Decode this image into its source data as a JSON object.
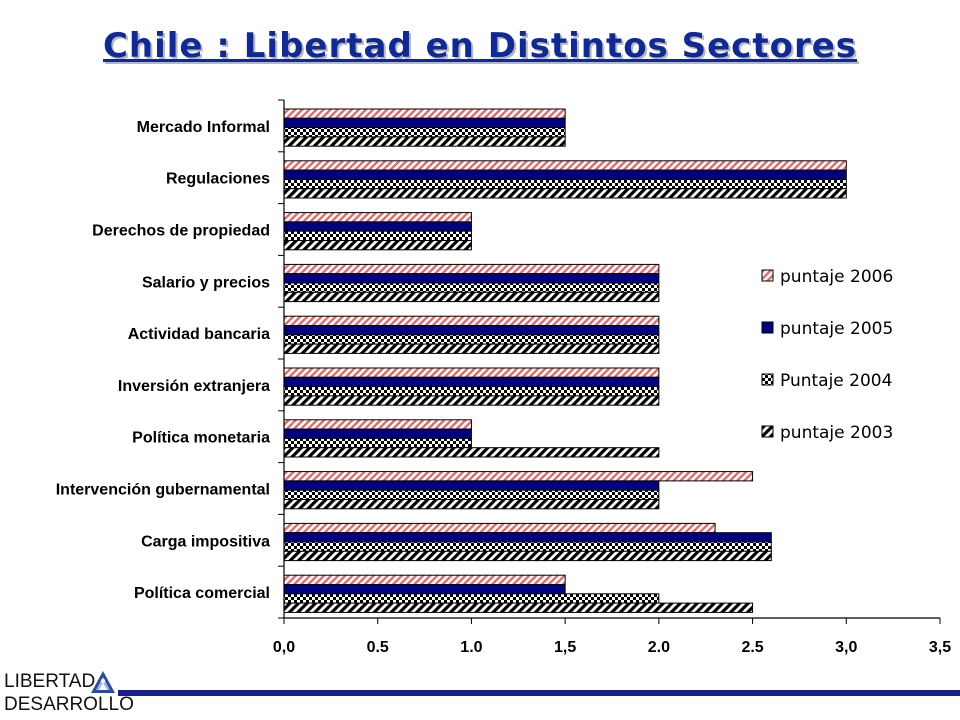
{
  "title": "Chile : Libertad en Distintos Sectores",
  "logo": {
    "line1": "LIBERTAD",
    "line2": "DESARROLLO"
  },
  "colors": {
    "title": "#0f2a96",
    "s2006_fg": "#e06a6a",
    "s2005": "#000080",
    "checker": "#000000",
    "footer_bar": "#1a1f8c"
  },
  "chart_data": {
    "type": "bar",
    "orientation": "horizontal",
    "title": "Chile : Libertad en Distintos Sectores",
    "xlabel": "",
    "ylabel": "",
    "xlim": [
      0,
      3.5
    ],
    "ticks": [
      "0,0",
      "0.5",
      "1.0",
      "1,5",
      "2.0",
      "2.5",
      "3,0",
      "3,5"
    ],
    "grid": false,
    "legend_position": "right",
    "categories": [
      "Mercado Informal",
      "Regulaciones",
      "Derechos de propiedad",
      "Salario y precios",
      "Actividad bancaria",
      "Inversión extranjera",
      "Política monetaria",
      "Intervención gubernamental",
      "Carga impositiva",
      "Política comercial"
    ],
    "series": [
      {
        "name": "puntaje 2006",
        "pattern": "diagonal-red",
        "values": [
          1.5,
          3.0,
          1.0,
          2.0,
          2.0,
          2.0,
          1.0,
          2.5,
          2.3,
          1.5
        ]
      },
      {
        "name": "puntaje 2005",
        "pattern": "solid-navy",
        "values": [
          1.5,
          3.0,
          1.0,
          2.0,
          2.0,
          2.0,
          1.0,
          2.0,
          2.6,
          1.5
        ]
      },
      {
        "name": "Puntaje 2004",
        "pattern": "checker",
        "values": [
          1.5,
          3.0,
          1.0,
          2.0,
          2.0,
          2.0,
          1.0,
          2.0,
          2.6,
          2.0
        ]
      },
      {
        "name": "puntaje 2003",
        "pattern": "diagonal-black",
        "values": [
          1.5,
          3.0,
          1.0,
          2.0,
          2.0,
          2.0,
          2.0,
          2.0,
          2.6,
          2.5
        ]
      }
    ]
  }
}
